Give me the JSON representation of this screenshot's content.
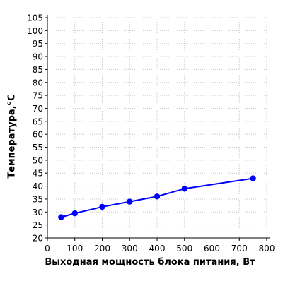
{
  "chart_data": {
    "type": "line",
    "title": "",
    "xlabel": "Выходная мощность блока питания, Вт",
    "ylabel": "Температура,°С",
    "xlim": [
      0,
      800
    ],
    "ylim": [
      20,
      105
    ],
    "x_ticks": [
      0,
      100,
      200,
      300,
      400,
      500,
      600,
      700,
      800
    ],
    "y_ticks": [
      20,
      25,
      30,
      35,
      40,
      45,
      50,
      55,
      60,
      65,
      70,
      75,
      80,
      85,
      90,
      95,
      100,
      105
    ],
    "x_tick_labels": [
      "0",
      "100",
      "200",
      "300",
      "400",
      "500",
      "600",
      "700",
      "800"
    ],
    "y_tick_labels": [
      "20",
      "25",
      "30",
      "35",
      "40",
      "45",
      "50",
      "55",
      "60",
      "65",
      "70",
      "75",
      "80",
      "85",
      "90",
      "95",
      "100",
      "105"
    ],
    "grid": true,
    "legend": false,
    "series": [
      {
        "color": "#0000ff",
        "x": [
          50,
          100,
          200,
          300,
          400,
          500,
          750
        ],
        "y": [
          28,
          29.5,
          32,
          34,
          36,
          39,
          43
        ]
      }
    ]
  }
}
